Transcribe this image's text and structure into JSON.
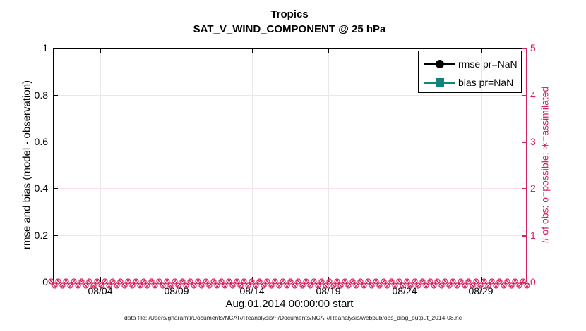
{
  "colors": {
    "accent_pink": "#d5215e",
    "teal": "#0f857c",
    "black": "#000000",
    "grid_gray": "#e8e8e8",
    "grid_pink": "#f8dfe8"
  },
  "title": {
    "line1": "Tropics",
    "line2": "SAT_V_WIND_COMPONENT @ 25 hPa"
  },
  "left_axis": {
    "label": "rmse and bias (model - observation)",
    "ticks": [
      "0",
      "0.2",
      "0.4",
      "0.6",
      "0.8",
      "1"
    ]
  },
  "right_axis": {
    "label": "# of obs: o=possible; ∗=assimilated",
    "ticks": [
      "0",
      "1",
      "2",
      "3",
      "4",
      "5"
    ]
  },
  "x_axis": {
    "ticks": [
      "08/04",
      "08/09",
      "08/14",
      "08/19",
      "08/24",
      "08/29"
    ],
    "label": "Aug.01,2014 00:00:00 start"
  },
  "legend": {
    "items": [
      {
        "label": "rmse pr=NaN",
        "color": "#000000",
        "marker": "circle"
      },
      {
        "label": "bias pr=NaN",
        "color": "#0f857c",
        "marker": "square"
      }
    ]
  },
  "caption": "data file: /Users/gharamti/Documents/NCAR/Reanalysis/~/Documents/NCAR/Reanalysis/webpub/obs_diag_output_2014-08.nc",
  "obs_band": {
    "n_bins": 124,
    "glyphs": "o-circle and asterisk overlapped"
  },
  "chart_data": {
    "type": "line",
    "title": "Tropics",
    "subtitle": "SAT_V_WIND_COMPONENT @ 25 hPa",
    "xlabel": "Aug.01,2014 00:00:00 start",
    "x_tick_labels": [
      "08/04",
      "08/09",
      "08/14",
      "08/19",
      "08/24",
      "08/29"
    ],
    "x_range_days": [
      "2014-08-01 00:00:00",
      "2014-09-01 00:00:00"
    ],
    "left_ylabel": "rmse and bias (model - observation)",
    "left_ylim": [
      0,
      1
    ],
    "left_yticks": [
      0,
      0.2,
      0.4,
      0.6,
      0.8,
      1
    ],
    "right_ylabel": "# of obs: o=possible; ∗=assimilated",
    "right_ylim": [
      0,
      5
    ],
    "right_yticks": [
      0,
      1,
      2,
      3,
      4,
      5
    ],
    "grid": "on",
    "legend_position": "northeast",
    "series": [
      {
        "name": "rmse pr=NaN",
        "axis": "left",
        "values": "NaN — no curve drawn",
        "marker": "filled-circle",
        "color": "#000000"
      },
      {
        "name": "bias pr=NaN",
        "axis": "left",
        "values": "NaN — no curve drawn",
        "marker": "filled-square",
        "color": "#0f857c"
      },
      {
        "name": "# of possible obs (o)",
        "axis": "right",
        "constant_value": 0,
        "n_points": 124,
        "color": "#d5215e"
      },
      {
        "name": "# of assimilated obs (∗)",
        "axis": "right",
        "constant_value": 0,
        "n_points": 124,
        "color": "#d5215e"
      }
    ]
  }
}
